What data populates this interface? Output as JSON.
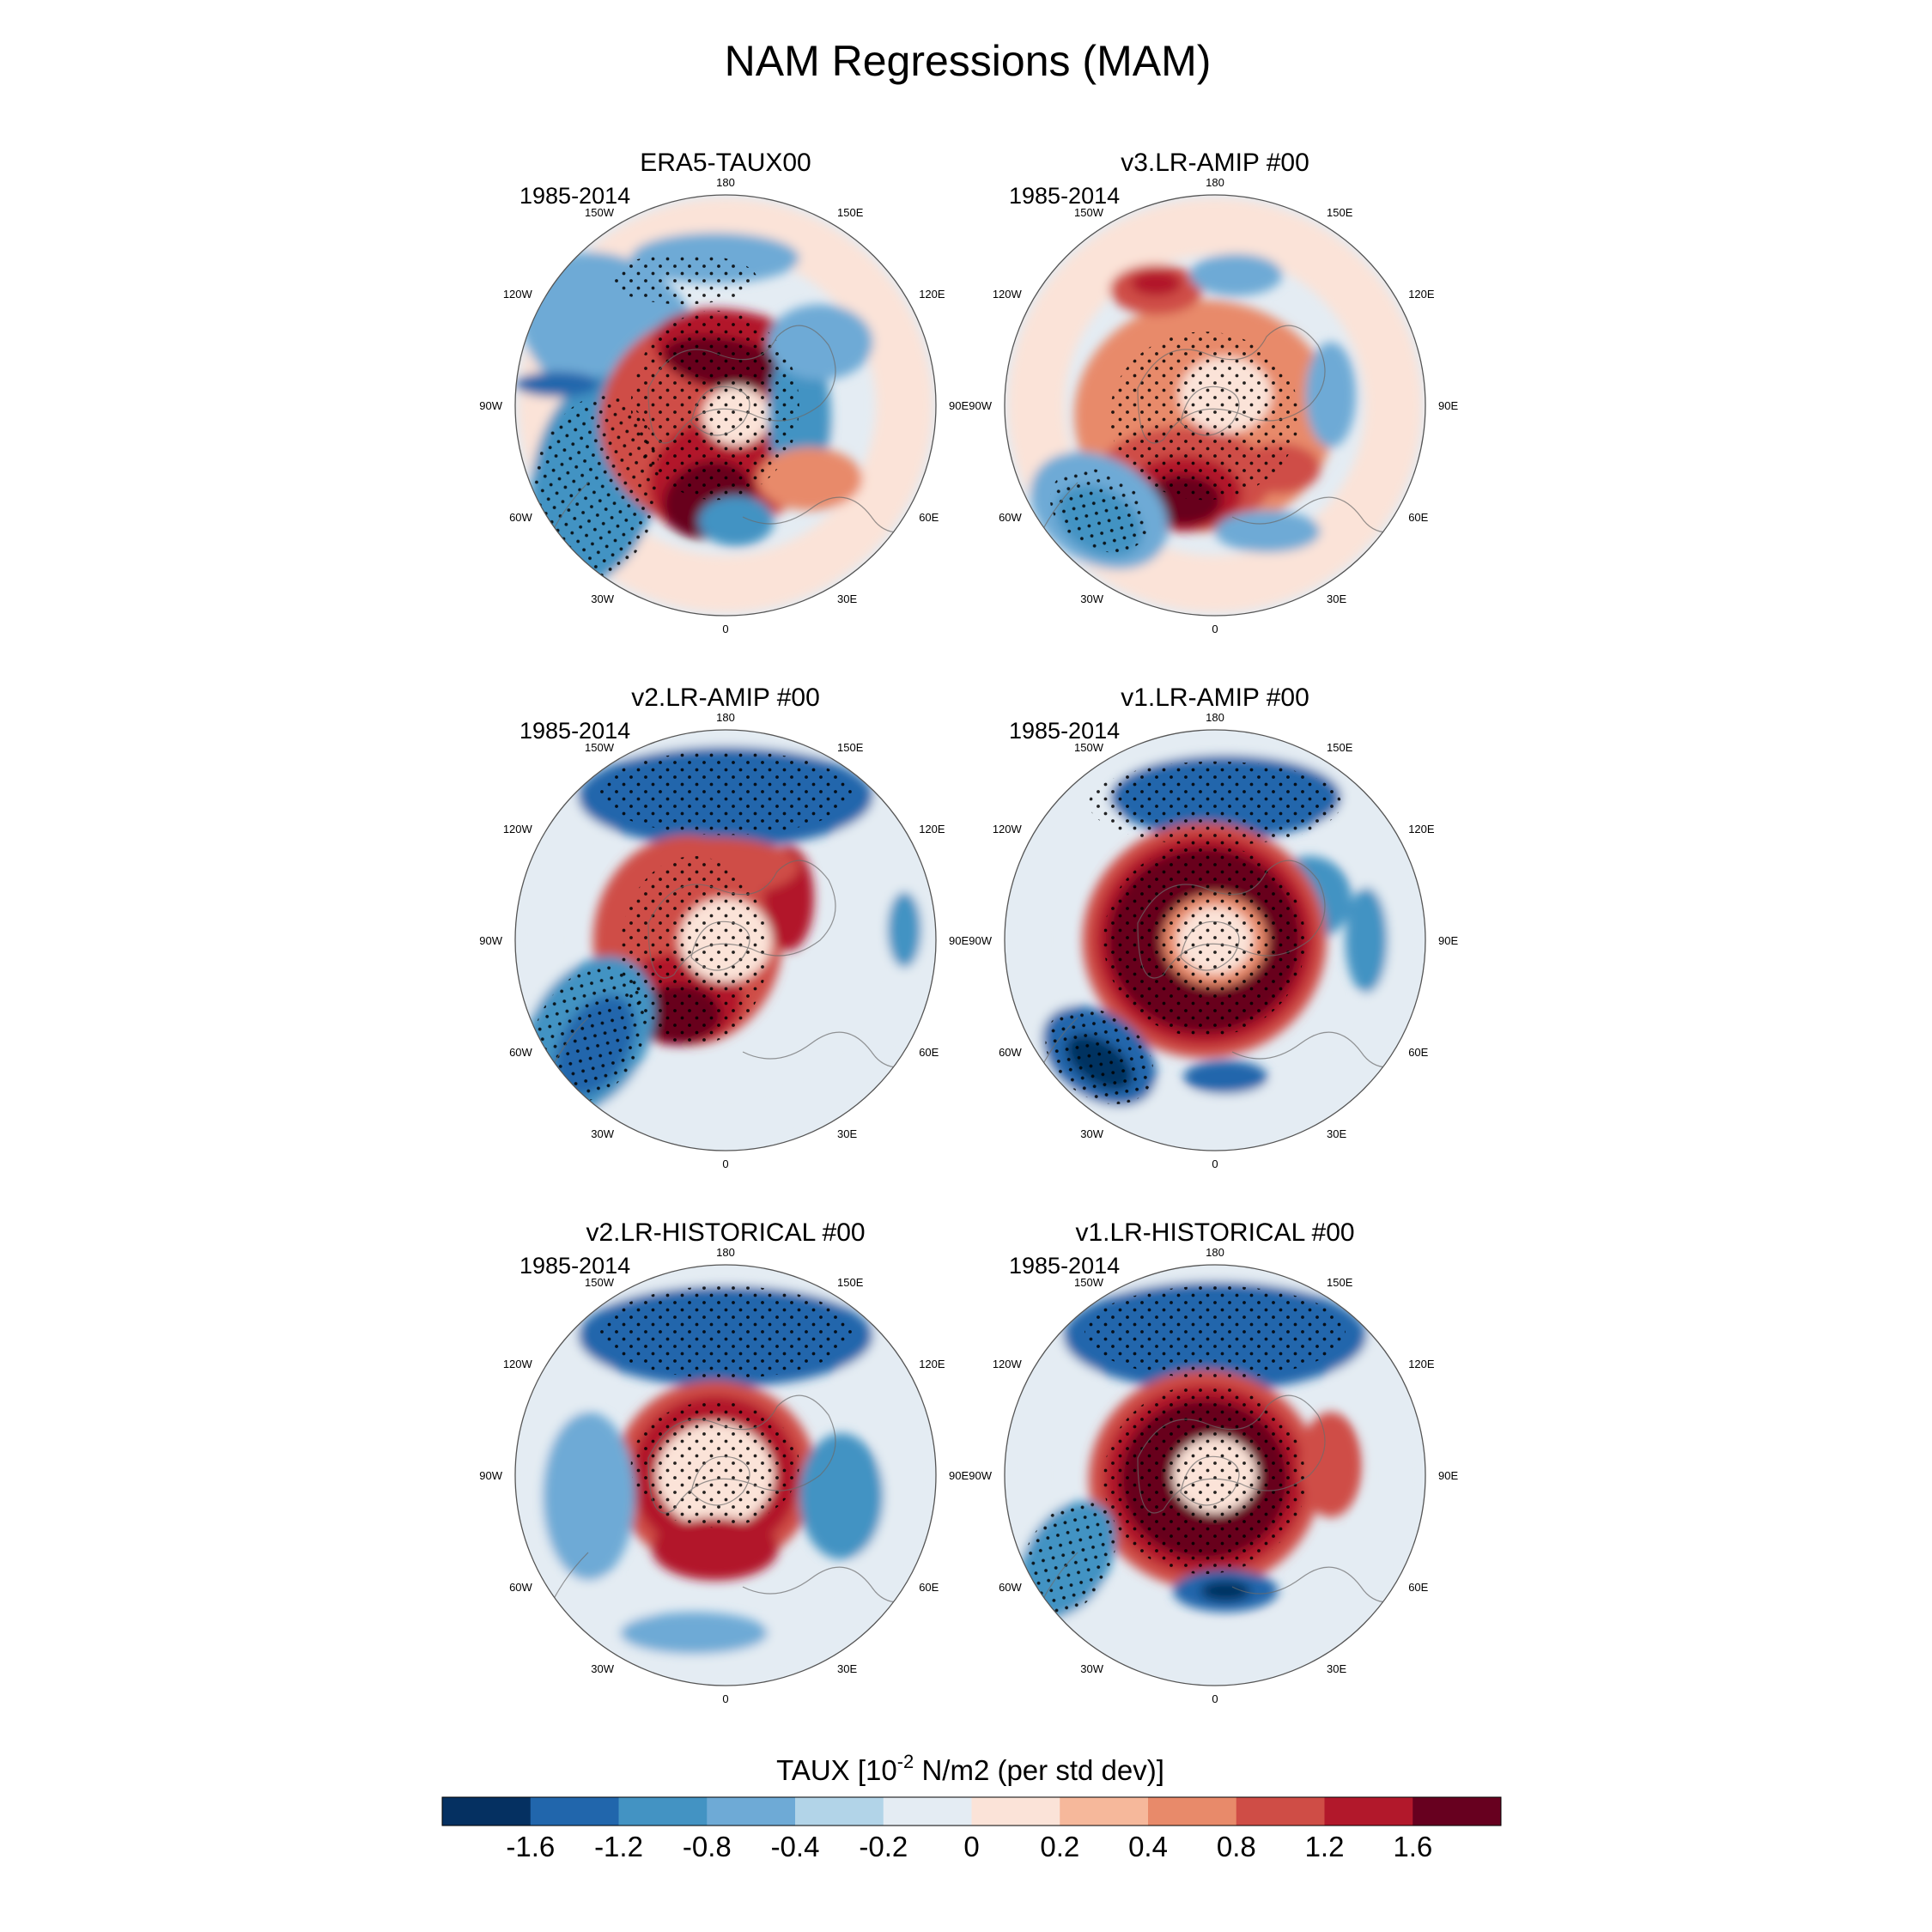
{
  "figure": {
    "title": "NAM Regressions (MAM)"
  },
  "panels": [
    {
      "title": "ERA5-TAUX00",
      "period": "1985-2014",
      "pattern": "era5"
    },
    {
      "title": "v3.LR-AMIP  #00",
      "period": "1985-2014",
      "pattern": "v3amip"
    },
    {
      "title": "v2.LR-AMIP  #00",
      "period": "1985-2014",
      "pattern": "v2amip"
    },
    {
      "title": "v1.LR-AMIP  #00",
      "period": "1985-2014",
      "pattern": "v1amip"
    },
    {
      "title": "v2.LR-HISTORICAL  #00",
      "period": "1985-2014",
      "pattern": "v2hist"
    },
    {
      "title": "v1.LR-HISTORICAL  #00",
      "period": "1985-2014",
      "pattern": "v1hist"
    }
  ],
  "longitude_labels": [
    "180",
    "150E",
    "120E",
    "90E",
    "60E",
    "30E",
    "0",
    "30W",
    "60W",
    "90W",
    "120W",
    "150W"
  ],
  "colorbar": {
    "title_prefix": "TAUX [10",
    "title_sup": "-2",
    "title_suffix": " N/m2 (per std dev)]",
    "ticks": [
      "-1.6",
      "-1.2",
      "-0.8",
      "-0.4",
      "-0.2",
      "0",
      "0.2",
      "0.4",
      "0.8",
      "1.2",
      "1.6"
    ],
    "colors": [
      "#053061",
      "#2166ac",
      "#4393c3",
      "#6eaad6",
      "#b2d4e8",
      "#e4ecf3",
      "#fbe3d8",
      "#f6b89b",
      "#e88a6a",
      "#cf4d46",
      "#b2182b",
      "#67001f"
    ]
  },
  "chart_data": {
    "type": "heatmap",
    "projection": "north polar stereographic",
    "variable": "TAUX",
    "units": "10^-2 N/m2 (per std dev)",
    "levels": [
      -1.6,
      -1.2,
      -0.8,
      -0.4,
      -0.2,
      0,
      0.2,
      0.4,
      0.8,
      1.2,
      1.6
    ],
    "stippling": "dots mark statistically significant regions"
  }
}
